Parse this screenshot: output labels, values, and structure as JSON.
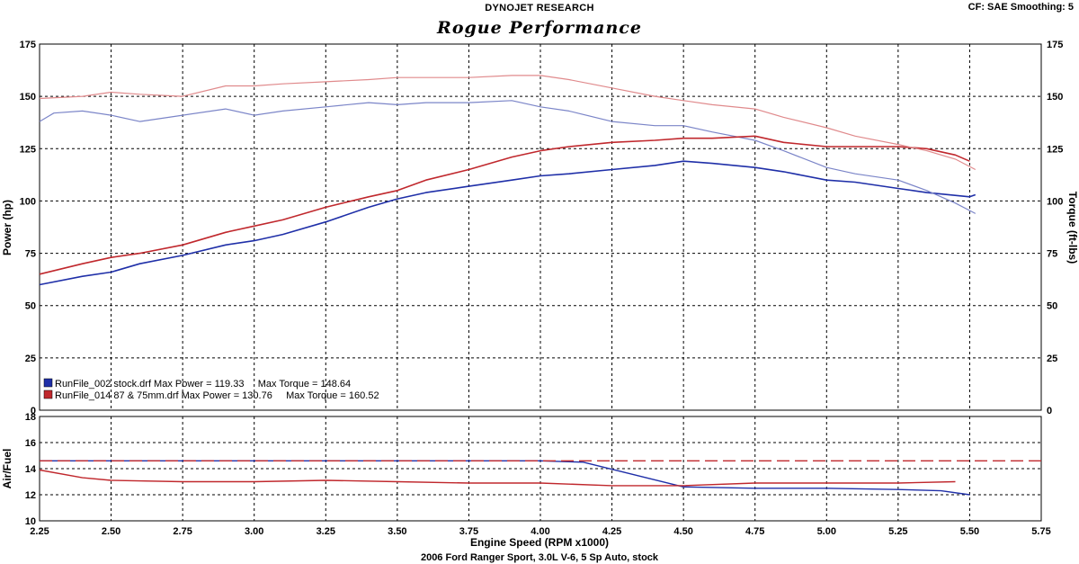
{
  "header": {
    "company": "DYNOJET RESEARCH",
    "brand": "Rogue Performance",
    "settings": "CF: SAE  Smoothing: 5"
  },
  "footer": {
    "caption": "2006 Ford Ranger Sport, 3.0L V-6, 5 Sp Auto, stock"
  },
  "chart_data": [
    {
      "type": "line",
      "panel": "power-torque",
      "xlabel": "",
      "ylabel": "Power (hp)",
      "y2label": "Torque (ft-lbs)",
      "xlim": [
        2.25,
        5.75
      ],
      "ylim": [
        0,
        175
      ],
      "y2lim": [
        0,
        175
      ],
      "xticks": [
        "2.25",
        "2.50",
        "2.75",
        "3.00",
        "3.25",
        "3.50",
        "3.75",
        "4.00",
        "4.25",
        "4.50",
        "4.75",
        "5.00",
        "5.25",
        "5.50",
        "5.75"
      ],
      "yticks": [
        "0",
        "25",
        "50",
        "75",
        "100",
        "125",
        "150",
        "175"
      ],
      "grid": true,
      "legend": [
        {
          "swatch": "#1f2fa8",
          "text": "RunFile_002 stock.drf Max Power = 119.33     Max Torque = 148.64"
        },
        {
          "swatch": "#c0282d",
          "text": "RunFile_014 87 & 75mm.drf Max Power = 130.76     Max Torque = 160.52"
        }
      ],
      "legend_position": "bottom-left",
      "series": [
        {
          "run": "stock",
          "quantity": "power",
          "color": "#1f2fa8",
          "x": [
            2.25,
            2.4,
            2.5,
            2.6,
            2.75,
            2.9,
            3.0,
            3.1,
            3.25,
            3.4,
            3.5,
            3.6,
            3.75,
            3.9,
            4.0,
            4.1,
            4.25,
            4.4,
            4.5,
            4.6,
            4.75,
            4.85,
            5.0,
            5.1,
            5.25,
            5.35,
            5.5,
            5.52
          ],
          "y": [
            60,
            64,
            66,
            70,
            74,
            79,
            81,
            84,
            90,
            97,
            101,
            104,
            107,
            110,
            112,
            113,
            115,
            117,
            119,
            118,
            116,
            114,
            110,
            109,
            106,
            104,
            102,
            103
          ]
        },
        {
          "run": "stock",
          "quantity": "torque",
          "color": "#7b85c8",
          "x": [
            2.25,
            2.3,
            2.4,
            2.5,
            2.6,
            2.75,
            2.9,
            3.0,
            3.1,
            3.25,
            3.4,
            3.5,
            3.6,
            3.75,
            3.9,
            4.0,
            4.1,
            4.25,
            4.4,
            4.5,
            4.6,
            4.75,
            4.85,
            5.0,
            5.1,
            5.25,
            5.35,
            5.45,
            5.52
          ],
          "y": [
            138,
            142,
            143,
            141,
            138,
            141,
            144,
            141,
            143,
            145,
            147,
            146,
            147,
            147,
            148,
            145,
            143,
            138,
            136,
            136,
            133,
            129,
            124,
            116,
            113,
            110,
            105,
            99,
            94
          ]
        },
        {
          "run": "87 & 75mm",
          "quantity": "power",
          "color": "#c0282d",
          "x": [
            2.25,
            2.4,
            2.5,
            2.6,
            2.75,
            2.9,
            3.0,
            3.1,
            3.25,
            3.4,
            3.5,
            3.6,
            3.75,
            3.9,
            4.0,
            4.1,
            4.25,
            4.4,
            4.5,
            4.6,
            4.75,
            4.85,
            5.0,
            5.1,
            5.25,
            5.35,
            5.45,
            5.5
          ],
          "y": [
            65,
            70,
            73,
            75,
            79,
            85,
            88,
            91,
            97,
            102,
            105,
            110,
            115,
            121,
            124,
            126,
            128,
            129,
            130,
            130,
            131,
            128,
            126,
            126,
            126,
            125,
            122,
            119
          ]
        },
        {
          "run": "87 & 75mm",
          "quantity": "torque",
          "color": "#e08a8c",
          "x": [
            2.25,
            2.4,
            2.5,
            2.6,
            2.75,
            2.9,
            3.0,
            3.1,
            3.25,
            3.4,
            3.5,
            3.6,
            3.75,
            3.9,
            4.0,
            4.1,
            4.25,
            4.4,
            4.5,
            4.6,
            4.75,
            4.85,
            5.0,
            5.1,
            5.25,
            5.35,
            5.45,
            5.52
          ],
          "y": [
            149,
            150,
            152,
            151,
            150,
            155,
            155,
            156,
            157,
            158,
            159,
            159,
            159,
            160,
            160,
            158,
            154,
            150,
            148,
            146,
            144,
            140,
            135,
            131,
            127,
            124,
            120,
            115
          ]
        }
      ]
    },
    {
      "type": "line",
      "panel": "air-fuel",
      "xlabel": "Engine Speed (RPM x1000)",
      "ylabel": "Air/Fuel",
      "xlim": [
        2.25,
        5.75
      ],
      "ylim": [
        10,
        18
      ],
      "xticks": [
        "2.25",
        "2.50",
        "2.75",
        "3.00",
        "3.25",
        "3.50",
        "3.75",
        "4.00",
        "4.25",
        "4.50",
        "4.75",
        "5.00",
        "5.25",
        "5.50",
        "5.75"
      ],
      "yticks": [
        "10",
        "12",
        "14",
        "16",
        "18"
      ],
      "grid": true,
      "series": [
        {
          "run": "stock",
          "quantity": "afr",
          "color": "#1f2fa8",
          "dashed": false,
          "x": [
            2.25,
            3.0,
            3.5,
            4.0,
            4.15,
            4.5,
            4.75,
            5.0,
            5.25,
            5.4,
            5.5
          ],
          "y": [
            14.6,
            14.6,
            14.6,
            14.6,
            14.5,
            12.6,
            12.5,
            12.5,
            12.4,
            12.3,
            12.0
          ]
        },
        {
          "run": "87 & 75mm",
          "quantity": "afr",
          "color": "#c0282d",
          "dashed": false,
          "x": [
            2.25,
            2.4,
            2.5,
            2.75,
            3.0,
            3.25,
            3.5,
            3.75,
            4.0,
            4.25,
            4.5,
            4.75,
            5.0,
            5.25,
            5.45
          ],
          "y": [
            13.9,
            13.3,
            13.1,
            13.0,
            13.0,
            13.1,
            13.0,
            12.9,
            12.9,
            12.7,
            12.7,
            12.9,
            12.9,
            12.9,
            13.0
          ]
        },
        {
          "run": "87 & 75mm",
          "quantity": "afr-reference",
          "color": "#c0282d",
          "dashed": true,
          "x": [
            2.25,
            4.1,
            5.75
          ],
          "y": [
            14.6,
            14.6,
            14.6
          ]
        }
      ]
    }
  ]
}
